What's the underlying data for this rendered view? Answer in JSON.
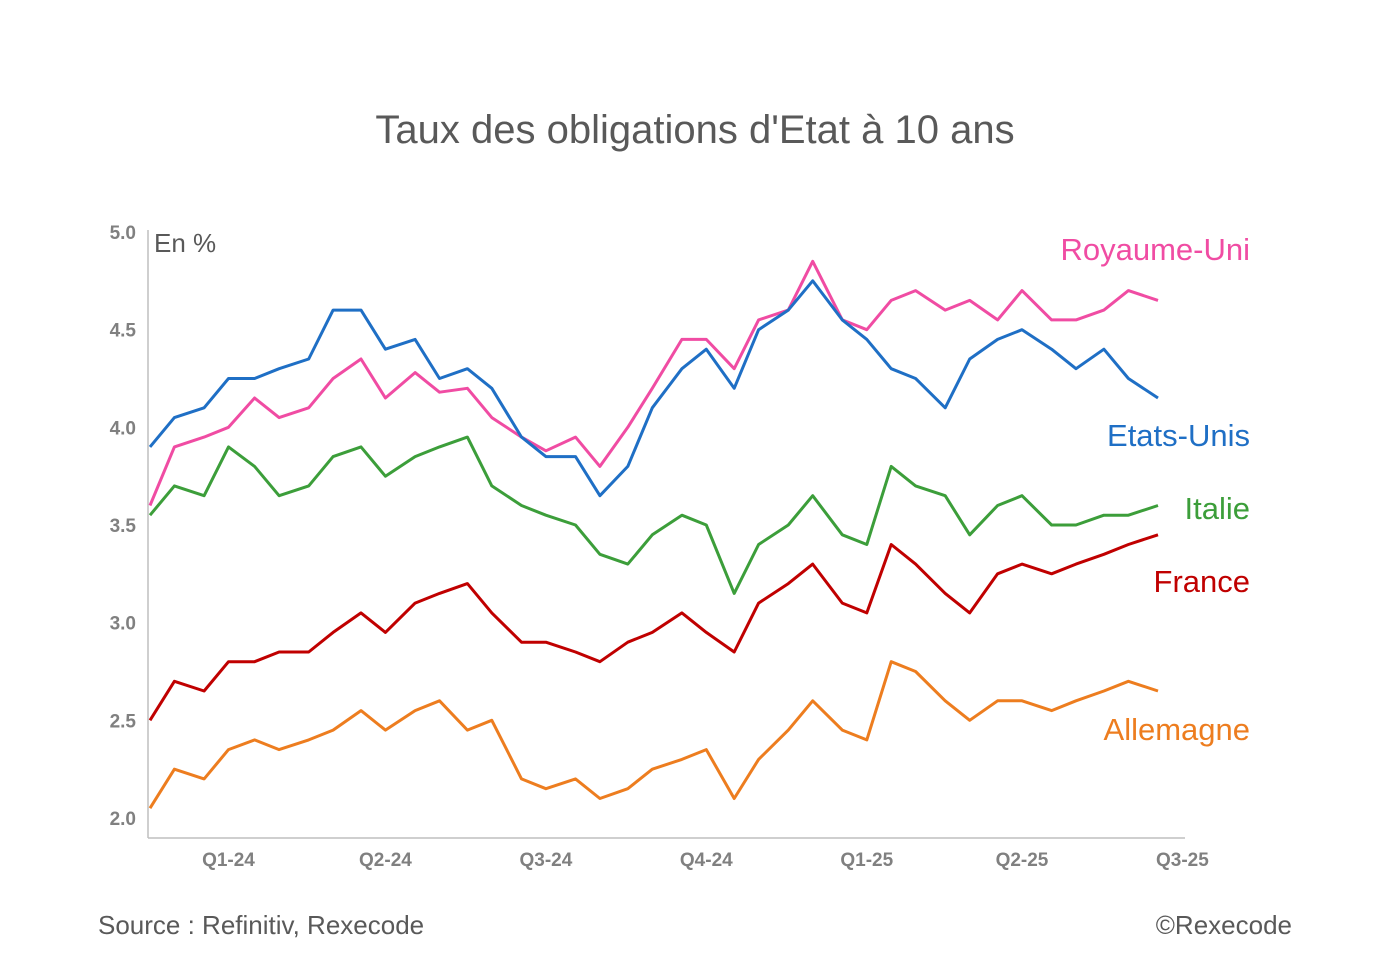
{
  "chart_data": {
    "type": "line",
    "title": "Taux des obligations d'Etat à 10 ans",
    "unit_label": "En %",
    "ylim": [
      2.0,
      5.0
    ],
    "yticks": [
      "2.0",
      "2.5",
      "3.0",
      "3.5",
      "4.0",
      "4.5",
      "5.0"
    ],
    "x_start": "2024-01-01",
    "x_end": "2025-08-01",
    "xticks": [
      {
        "label": "Q1-24",
        "x": "2024-02-15"
      },
      {
        "label": "Q2-24",
        "x": "2024-05-15"
      },
      {
        "label": "Q3-24",
        "x": "2024-08-15"
      },
      {
        "label": "Q4-24",
        "x": "2024-11-15"
      },
      {
        "label": "Q1-25",
        "x": "2025-02-15"
      },
      {
        "label": "Q2-25",
        "x": "2025-05-15"
      },
      {
        "label": "Q3-25",
        "x": "2025-08-15"
      }
    ],
    "legend_placement": "right, inline labels",
    "grid": false,
    "series": [
      {
        "name": "Royaume-Uni",
        "color": "#f04ca3",
        "points": [
          [
            "2024-01-01",
            3.6
          ],
          [
            "2024-01-15",
            3.9
          ],
          [
            "2024-02-01",
            3.95
          ],
          [
            "2024-02-15",
            4.0
          ],
          [
            "2024-03-01",
            4.15
          ],
          [
            "2024-03-15",
            4.05
          ],
          [
            "2024-04-01",
            4.1
          ],
          [
            "2024-04-15",
            4.25
          ],
          [
            "2024-05-01",
            4.35
          ],
          [
            "2024-05-15",
            4.15
          ],
          [
            "2024-06-01",
            4.28
          ],
          [
            "2024-06-15",
            4.18
          ],
          [
            "2024-07-01",
            4.2
          ],
          [
            "2024-07-15",
            4.05
          ],
          [
            "2024-08-01",
            3.95
          ],
          [
            "2024-08-15",
            3.88
          ],
          [
            "2024-09-01",
            3.95
          ],
          [
            "2024-09-15",
            3.8
          ],
          [
            "2024-10-01",
            4.0
          ],
          [
            "2024-10-15",
            4.2
          ],
          [
            "2024-11-01",
            4.45
          ],
          [
            "2024-11-15",
            4.45
          ],
          [
            "2024-12-01",
            4.3
          ],
          [
            "2024-12-15",
            4.55
          ],
          [
            "2025-01-01",
            4.6
          ],
          [
            "2025-01-15",
            4.85
          ],
          [
            "2025-02-01",
            4.55
          ],
          [
            "2025-02-15",
            4.5
          ],
          [
            "2025-03-01",
            4.65
          ],
          [
            "2025-03-15",
            4.7
          ],
          [
            "2025-04-01",
            4.6
          ],
          [
            "2025-04-15",
            4.65
          ],
          [
            "2025-05-01",
            4.55
          ],
          [
            "2025-05-15",
            4.7
          ],
          [
            "2025-06-01",
            4.55
          ],
          [
            "2025-06-15",
            4.55
          ],
          [
            "2025-07-01",
            4.6
          ],
          [
            "2025-07-15",
            4.7
          ],
          [
            "2025-08-01",
            4.65
          ]
        ]
      },
      {
        "name": "Etats-Unis",
        "color": "#1f6fc5",
        "points": [
          [
            "2024-01-01",
            3.9
          ],
          [
            "2024-01-15",
            4.05
          ],
          [
            "2024-02-01",
            4.1
          ],
          [
            "2024-02-15",
            4.25
          ],
          [
            "2024-03-01",
            4.25
          ],
          [
            "2024-03-15",
            4.3
          ],
          [
            "2024-04-01",
            4.35
          ],
          [
            "2024-04-15",
            4.6
          ],
          [
            "2024-05-01",
            4.6
          ],
          [
            "2024-05-15",
            4.4
          ],
          [
            "2024-06-01",
            4.45
          ],
          [
            "2024-06-15",
            4.25
          ],
          [
            "2024-07-01",
            4.3
          ],
          [
            "2024-07-15",
            4.2
          ],
          [
            "2024-08-01",
            3.95
          ],
          [
            "2024-08-15",
            3.85
          ],
          [
            "2024-09-01",
            3.85
          ],
          [
            "2024-09-15",
            3.65
          ],
          [
            "2024-10-01",
            3.8
          ],
          [
            "2024-10-15",
            4.1
          ],
          [
            "2024-11-01",
            4.3
          ],
          [
            "2024-11-15",
            4.4
          ],
          [
            "2024-12-01",
            4.2
          ],
          [
            "2024-12-15",
            4.5
          ],
          [
            "2025-01-01",
            4.6
          ],
          [
            "2025-01-15",
            4.75
          ],
          [
            "2025-02-01",
            4.55
          ],
          [
            "2025-02-15",
            4.45
          ],
          [
            "2025-03-01",
            4.3
          ],
          [
            "2025-03-15",
            4.25
          ],
          [
            "2025-04-01",
            4.1
          ],
          [
            "2025-04-15",
            4.35
          ],
          [
            "2025-05-01",
            4.45
          ],
          [
            "2025-05-15",
            4.5
          ],
          [
            "2025-06-01",
            4.4
          ],
          [
            "2025-06-15",
            4.3
          ],
          [
            "2025-07-01",
            4.4
          ],
          [
            "2025-07-15",
            4.25
          ],
          [
            "2025-08-01",
            4.15
          ]
        ]
      },
      {
        "name": "Italie",
        "color": "#3c9e3a",
        "points": [
          [
            "2024-01-01",
            3.55
          ],
          [
            "2024-01-15",
            3.7
          ],
          [
            "2024-02-01",
            3.65
          ],
          [
            "2024-02-15",
            3.9
          ],
          [
            "2024-03-01",
            3.8
          ],
          [
            "2024-03-15",
            3.65
          ],
          [
            "2024-04-01",
            3.7
          ],
          [
            "2024-04-15",
            3.85
          ],
          [
            "2024-05-01",
            3.9
          ],
          [
            "2024-05-15",
            3.75
          ],
          [
            "2024-06-01",
            3.85
          ],
          [
            "2024-06-15",
            3.9
          ],
          [
            "2024-07-01",
            3.95
          ],
          [
            "2024-07-15",
            3.7
          ],
          [
            "2024-08-01",
            3.6
          ],
          [
            "2024-08-15",
            3.55
          ],
          [
            "2024-09-01",
            3.5
          ],
          [
            "2024-09-15",
            3.35
          ],
          [
            "2024-10-01",
            3.3
          ],
          [
            "2024-10-15",
            3.45
          ],
          [
            "2024-11-01",
            3.55
          ],
          [
            "2024-11-15",
            3.5
          ],
          [
            "2024-12-01",
            3.15
          ],
          [
            "2024-12-15",
            3.4
          ],
          [
            "2025-01-01",
            3.5
          ],
          [
            "2025-01-15",
            3.65
          ],
          [
            "2025-02-01",
            3.45
          ],
          [
            "2025-02-15",
            3.4
          ],
          [
            "2025-03-01",
            3.8
          ],
          [
            "2025-03-15",
            3.7
          ],
          [
            "2025-04-01",
            3.65
          ],
          [
            "2025-04-15",
            3.45
          ],
          [
            "2025-05-01",
            3.6
          ],
          [
            "2025-05-15",
            3.65
          ],
          [
            "2025-06-01",
            3.5
          ],
          [
            "2025-06-15",
            3.5
          ],
          [
            "2025-07-01",
            3.55
          ],
          [
            "2025-07-15",
            3.55
          ],
          [
            "2025-08-01",
            3.6
          ]
        ]
      },
      {
        "name": "France",
        "color": "#c00000",
        "points": [
          [
            "2024-01-01",
            2.5
          ],
          [
            "2024-01-15",
            2.7
          ],
          [
            "2024-02-01",
            2.65
          ],
          [
            "2024-02-15",
            2.8
          ],
          [
            "2024-03-01",
            2.8
          ],
          [
            "2024-03-15",
            2.85
          ],
          [
            "2024-04-01",
            2.85
          ],
          [
            "2024-04-15",
            2.95
          ],
          [
            "2024-05-01",
            3.05
          ],
          [
            "2024-05-15",
            2.95
          ],
          [
            "2024-06-01",
            3.1
          ],
          [
            "2024-06-15",
            3.15
          ],
          [
            "2024-07-01",
            3.2
          ],
          [
            "2024-07-15",
            3.05
          ],
          [
            "2024-08-01",
            2.9
          ],
          [
            "2024-08-15",
            2.9
          ],
          [
            "2024-09-01",
            2.85
          ],
          [
            "2024-09-15",
            2.8
          ],
          [
            "2024-10-01",
            2.9
          ],
          [
            "2024-10-15",
            2.95
          ],
          [
            "2024-11-01",
            3.05
          ],
          [
            "2024-11-15",
            2.95
          ],
          [
            "2024-12-01",
            2.85
          ],
          [
            "2024-12-15",
            3.1
          ],
          [
            "2025-01-01",
            3.2
          ],
          [
            "2025-01-15",
            3.3
          ],
          [
            "2025-02-01",
            3.1
          ],
          [
            "2025-02-15",
            3.05
          ],
          [
            "2025-03-01",
            3.4
          ],
          [
            "2025-03-15",
            3.3
          ],
          [
            "2025-04-01",
            3.15
          ],
          [
            "2025-04-15",
            3.05
          ],
          [
            "2025-05-01",
            3.25
          ],
          [
            "2025-05-15",
            3.3
          ],
          [
            "2025-06-01",
            3.25
          ],
          [
            "2025-06-15",
            3.3
          ],
          [
            "2025-07-01",
            3.35
          ],
          [
            "2025-07-15",
            3.4
          ],
          [
            "2025-08-01",
            3.45
          ]
        ]
      },
      {
        "name": "Allemagne",
        "color": "#ed7d1f",
        "points": [
          [
            "2024-01-01",
            2.05
          ],
          [
            "2024-01-15",
            2.25
          ],
          [
            "2024-02-01",
            2.2
          ],
          [
            "2024-02-15",
            2.35
          ],
          [
            "2024-03-01",
            2.4
          ],
          [
            "2024-03-15",
            2.35
          ],
          [
            "2024-04-01",
            2.4
          ],
          [
            "2024-04-15",
            2.45
          ],
          [
            "2024-05-01",
            2.55
          ],
          [
            "2024-05-15",
            2.45
          ],
          [
            "2024-06-01",
            2.55
          ],
          [
            "2024-06-15",
            2.6
          ],
          [
            "2024-07-01",
            2.45
          ],
          [
            "2024-07-15",
            2.5
          ],
          [
            "2024-08-01",
            2.2
          ],
          [
            "2024-08-15",
            2.15
          ],
          [
            "2024-09-01",
            2.2
          ],
          [
            "2024-09-15",
            2.1
          ],
          [
            "2024-10-01",
            2.15
          ],
          [
            "2024-10-15",
            2.25
          ],
          [
            "2024-11-01",
            2.3
          ],
          [
            "2024-11-15",
            2.35
          ],
          [
            "2024-12-01",
            2.1
          ],
          [
            "2024-12-15",
            2.3
          ],
          [
            "2025-01-01",
            2.45
          ],
          [
            "2025-01-15",
            2.6
          ],
          [
            "2025-02-01",
            2.45
          ],
          [
            "2025-02-15",
            2.4
          ],
          [
            "2025-03-01",
            2.8
          ],
          [
            "2025-03-15",
            2.75
          ],
          [
            "2025-04-01",
            2.6
          ],
          [
            "2025-04-15",
            2.5
          ],
          [
            "2025-05-01",
            2.6
          ],
          [
            "2025-05-15",
            2.6
          ],
          [
            "2025-06-01",
            2.55
          ],
          [
            "2025-06-15",
            2.6
          ],
          [
            "2025-07-01",
            2.65
          ],
          [
            "2025-07-15",
            2.7
          ],
          [
            "2025-08-01",
            2.65
          ]
        ]
      }
    ]
  },
  "footer": {
    "source": "Source : Refinitiv, Rexecode",
    "copyright": "©Rexecode"
  }
}
